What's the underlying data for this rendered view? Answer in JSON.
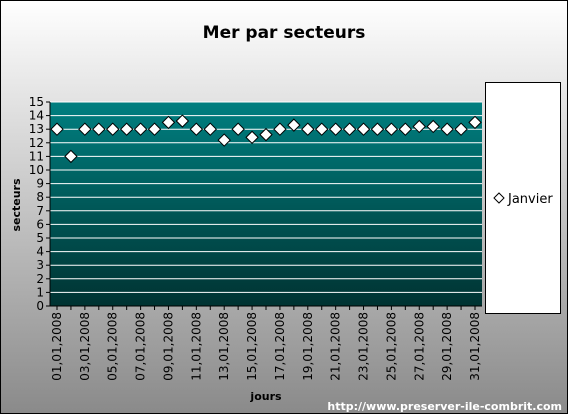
{
  "chart_data": {
    "type": "line",
    "title": "Mer par secteurs",
    "xlabel": "jours",
    "ylabel": "secteurs",
    "ylim": [
      0,
      15
    ],
    "yticks": [
      0,
      1,
      2,
      3,
      4,
      5,
      6,
      7,
      8,
      9,
      10,
      11,
      12,
      13,
      14,
      15
    ],
    "categories": [
      "01,01,2008",
      "02,01,2008",
      "03,01,2008",
      "04,01,2008",
      "05,01,2008",
      "06,01,2008",
      "07,01,2008",
      "08,01,2008",
      "09,01,2008",
      "10,01,2008",
      "11,01,2008",
      "12,01,2008",
      "13,01,2008",
      "14,01,2008",
      "15,01,2008",
      "16,01,2008",
      "17,01,2008",
      "18,01,2008",
      "19,01,2008",
      "20,01,2008",
      "21,01,2008",
      "22,01,2008",
      "23,01,2008",
      "24,01,2008",
      "25,01,2008",
      "26,01,2008",
      "27,01,2008",
      "28,01,2008",
      "29,01,2008",
      "30,01,2008",
      "31,01,2008"
    ],
    "shown_tick_labels": [
      "01,01,2008",
      "03,01,2008",
      "05,01,2008",
      "07,01,2008",
      "09,01,2008",
      "11,01,2008",
      "13,01,2008",
      "15,01,2008",
      "17,01,2008",
      "19,01,2008",
      "21,01,2008",
      "23,01,2008",
      "25,01,2008",
      "27,01,2008",
      "29,01,2008",
      "31,01,2008"
    ],
    "series": [
      {
        "name": "Janvier",
        "marker": "diamond",
        "values": [
          13,
          11,
          13,
          13,
          13,
          13,
          13,
          13,
          13.5,
          13.6,
          13,
          13,
          12.2,
          13,
          12.4,
          12.6,
          13,
          13.3,
          13,
          13,
          13,
          13,
          13,
          13,
          13,
          13,
          13.2,
          13.2,
          13,
          13,
          13.5
        ]
      }
    ],
    "grid": true,
    "legend_position": "right",
    "colors": {
      "plot_top": "#007f80",
      "plot_bottom": "#003332",
      "background_top": "#ffffff",
      "background_bottom": "#8a8a8a"
    }
  },
  "footer": {
    "credit": "http://www.preserver-ile-combrit.com"
  }
}
